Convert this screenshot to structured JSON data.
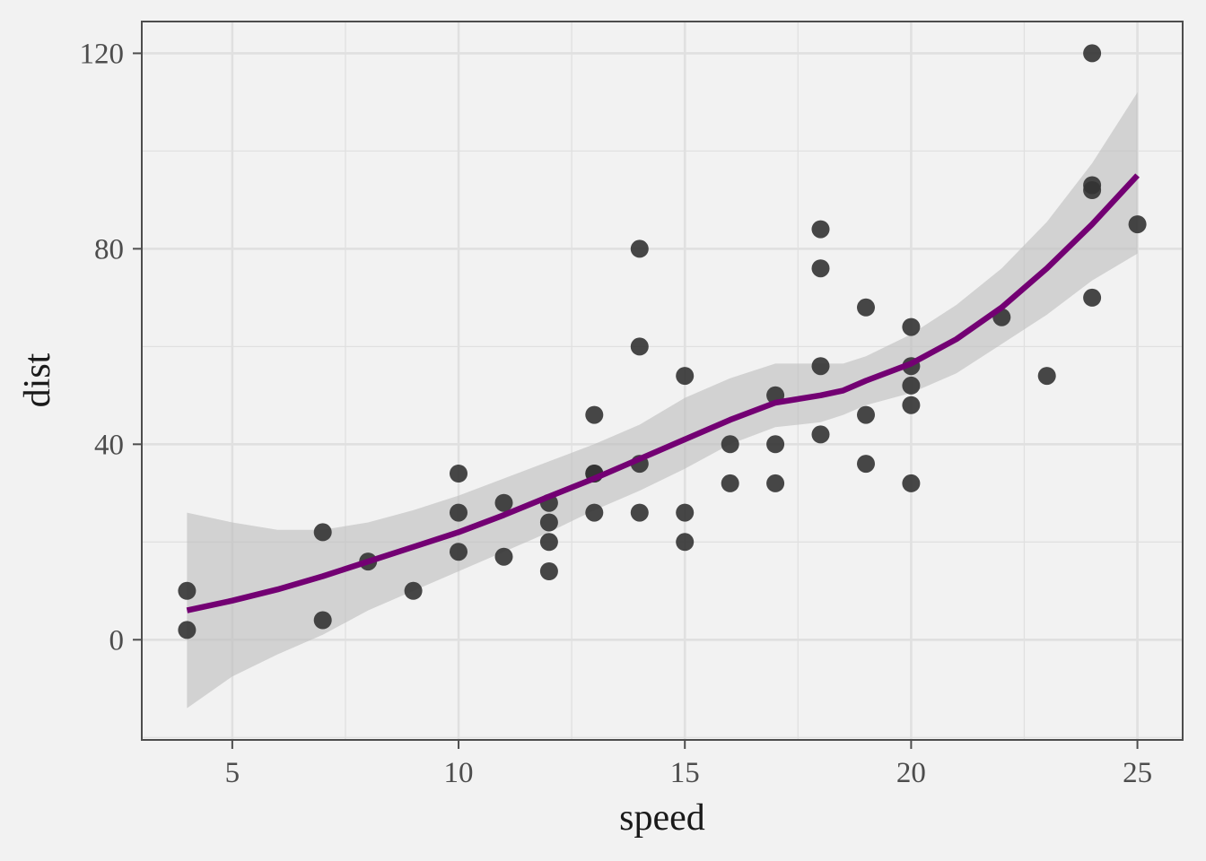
{
  "chart_data": {
    "type": "scatter",
    "title": "",
    "xlabel": "speed",
    "ylabel": "dist",
    "xlim": [
      3,
      26
    ],
    "ylim": [
      -20.5,
      126.5
    ],
    "x_ticks": [
      5,
      10,
      15,
      20,
      25
    ],
    "y_ticks": [
      0,
      40,
      80,
      120
    ],
    "x_tick_labels": [
      "5",
      "10",
      "15",
      "20",
      "25"
    ],
    "y_tick_labels": [
      "0",
      "40",
      "80",
      "120"
    ],
    "grid": true,
    "legend": "none",
    "colors": {
      "background": "#f2f2f2",
      "grid": "#e0e0e0",
      "border": "#4d4d4d",
      "points": "#333333",
      "smooth_line": "#730073",
      "confidence_band": "#bdbdbd"
    },
    "points": {
      "x": [
        4,
        4,
        7,
        7,
        8,
        9,
        10,
        10,
        10,
        11,
        11,
        12,
        12,
        12,
        12,
        13,
        13,
        13,
        13,
        14,
        14,
        14,
        14,
        15,
        15,
        15,
        16,
        16,
        17,
        17,
        17,
        18,
        18,
        18,
        18,
        19,
        19,
        19,
        20,
        20,
        20,
        20,
        20,
        22,
        23,
        24,
        24,
        24,
        24,
        25
      ],
      "y": [
        2,
        10,
        4,
        22,
        16,
        10,
        18,
        26,
        34,
        17,
        28,
        14,
        20,
        24,
        28,
        26,
        34,
        34,
        46,
        26,
        36,
        60,
        80,
        20,
        26,
        54,
        32,
        40,
        32,
        40,
        50,
        42,
        56,
        76,
        84,
        36,
        46,
        68,
        32,
        48,
        52,
        56,
        64,
        66,
        54,
        70,
        92,
        93,
        120,
        85
      ]
    },
    "smooth": {
      "method": "loess",
      "x": [
        4,
        5,
        6,
        7,
        8,
        9,
        10,
        11,
        12,
        13,
        14,
        15,
        16,
        17,
        18,
        18.5,
        19,
        20,
        21,
        22,
        23,
        24,
        25
      ],
      "y": [
        6,
        8,
        10.3,
        13,
        16,
        19,
        22,
        25.5,
        29.3,
        33,
        37,
        41,
        45,
        48.5,
        50,
        51,
        53,
        56.5,
        61.5,
        68,
        76,
        85,
        95
      ],
      "lower": [
        -14,
        -7.5,
        -3,
        1,
        6,
        10,
        14,
        18,
        22,
        26.5,
        30.5,
        35,
        40,
        43.5,
        44.5,
        46,
        48,
        50.5,
        54.5,
        60.5,
        66.5,
        73.5,
        79
      ],
      "upper": [
        26,
        24,
        22.5,
        22.5,
        24,
        26.5,
        29.5,
        33,
        36.5,
        40,
        44,
        49.5,
        53.5,
        56.5,
        56.5,
        56.5,
        58,
        62.5,
        68.5,
        76,
        85.5,
        97.5,
        112
      ]
    }
  }
}
